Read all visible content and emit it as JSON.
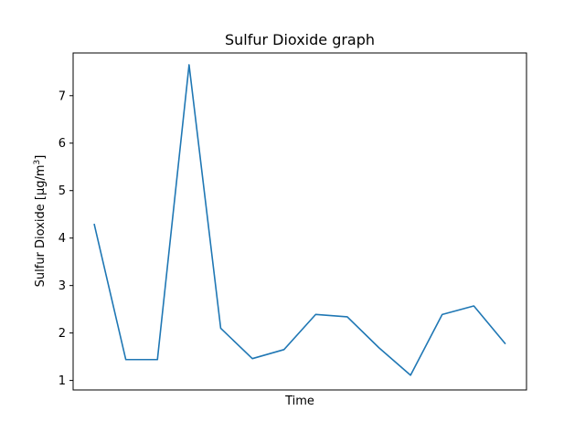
{
  "chart_data": {
    "type": "line",
    "title": "Sulfur Dioxide graph",
    "xlabel": "Time",
    "ylabel": "Sulfur Dioxide [μg/m³]",
    "ylabel_parts": {
      "text": "Sulfur Dioxide [μg/m",
      "superscript": "3",
      "suffix": "]"
    },
    "x_tick_labels": [],
    "y_ticks": [
      1,
      2,
      3,
      4,
      5,
      6,
      7
    ],
    "ylim": [
      0.8,
      7.9
    ],
    "grid": false,
    "legend": "none",
    "series": [
      {
        "color": "#1f77b4",
        "values": [
          4.3,
          1.44,
          1.44,
          7.65,
          2.1,
          1.46,
          1.65,
          2.39,
          2.34,
          1.69,
          1.11,
          2.39,
          2.57,
          1.77
        ]
      }
    ]
  }
}
